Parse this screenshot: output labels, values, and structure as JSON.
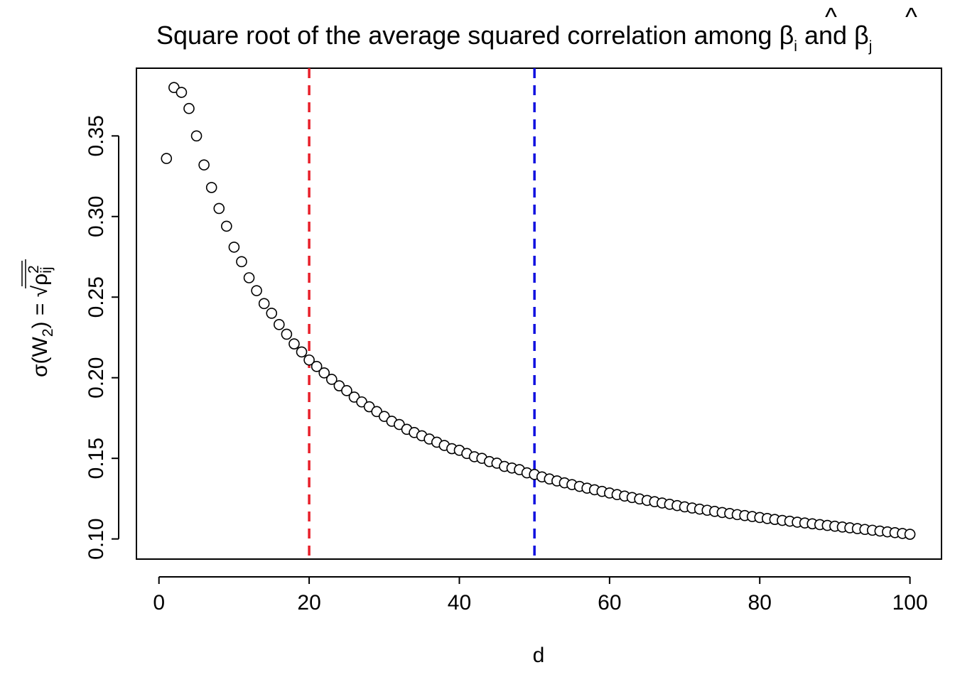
{
  "chart_data": {
    "type": "scatter",
    "title": {
      "prefix": "Square root of the average squared correlation among ",
      "beta1": "β",
      "sub1": "i",
      "middle": " and ",
      "beta2": "β",
      "sub2": "j",
      "hat": "^"
    },
    "xlabel": "d",
    "ylabel": {
      "sigma": "σ",
      "open": "(W",
      "sub": "2",
      "close": ") = ",
      "root": "√",
      "rho": "ρ",
      "rho_sub": "ij",
      "rho_sup": "2"
    },
    "xlim": [
      -3.0,
      104.2
    ],
    "ylim": [
      0.0875,
      0.392
    ],
    "x_ticks": [
      0,
      20,
      40,
      60,
      80,
      100
    ],
    "x_tick_labels": [
      "0",
      "20",
      "40",
      "60",
      "80",
      "100"
    ],
    "y_ticks": [
      0.1,
      0.15,
      0.2,
      0.25,
      0.3,
      0.35
    ],
    "y_tick_labels": [
      "0.10",
      "0.15",
      "0.20",
      "0.25",
      "0.30",
      "0.35"
    ],
    "marker": "open-circle",
    "reference_lines": [
      {
        "x": 20,
        "color": "#e8202a",
        "style": "dashed"
      },
      {
        "x": 50,
        "color": "#1010e0",
        "style": "dashed"
      }
    ],
    "series": [
      {
        "name": "sigma(W2)",
        "x": [
          1,
          2,
          3,
          4,
          5,
          6,
          7,
          8,
          9,
          10,
          11,
          12,
          13,
          14,
          15,
          16,
          17,
          18,
          19,
          20,
          21,
          22,
          23,
          24,
          25,
          26,
          27,
          28,
          29,
          30,
          31,
          32,
          33,
          34,
          35,
          36,
          37,
          38,
          39,
          40,
          41,
          42,
          43,
          44,
          45,
          46,
          47,
          48,
          49,
          50,
          51,
          52,
          53,
          54,
          55,
          56,
          57,
          58,
          59,
          60,
          61,
          62,
          63,
          64,
          65,
          66,
          67,
          68,
          69,
          70,
          71,
          72,
          73,
          74,
          75,
          76,
          77,
          78,
          79,
          80,
          81,
          82,
          83,
          84,
          85,
          86,
          87,
          88,
          89,
          90,
          91,
          92,
          93,
          94,
          95,
          96,
          97,
          98,
          99,
          100
        ],
        "y": [
          0.336,
          0.38,
          0.377,
          0.367,
          0.35,
          0.332,
          0.318,
          0.305,
          0.294,
          0.281,
          0.272,
          0.262,
          0.254,
          0.246,
          0.24,
          0.233,
          0.227,
          0.221,
          0.216,
          0.211,
          0.207,
          0.203,
          0.199,
          0.195,
          0.192,
          0.188,
          0.185,
          0.182,
          0.179,
          0.176,
          0.173,
          0.171,
          0.168,
          0.166,
          0.164,
          0.162,
          0.16,
          0.158,
          0.156,
          0.155,
          0.153,
          0.151,
          0.15,
          0.148,
          0.147,
          0.145,
          0.144,
          0.143,
          0.141,
          0.14,
          0.1385,
          0.1372,
          0.136,
          0.1348,
          0.1337,
          0.1326,
          0.1315,
          0.1305,
          0.1295,
          0.1285,
          0.1275,
          0.1266,
          0.1257,
          0.1248,
          0.1239,
          0.1231,
          0.1223,
          0.1215,
          0.1207,
          0.1199,
          0.1192,
          0.1185,
          0.1178,
          0.1171,
          0.1164,
          0.1158,
          0.1151,
          0.1145,
          0.1139,
          0.1133,
          0.1127,
          0.1121,
          0.1115,
          0.111,
          0.1104,
          0.1099,
          0.1094,
          0.1089,
          0.1084,
          0.1079,
          0.1074,
          0.1069,
          0.1064,
          0.1059,
          0.1054,
          0.1049,
          0.1044,
          0.1039,
          0.1034,
          0.1029
        ]
      }
    ]
  }
}
